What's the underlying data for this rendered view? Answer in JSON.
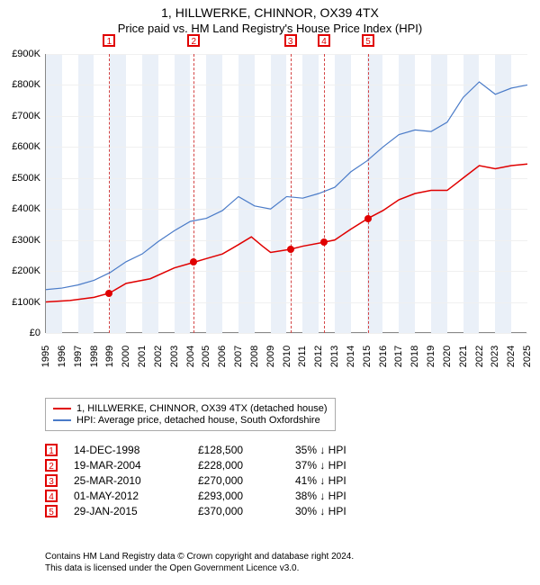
{
  "title": {
    "line1": "1, HILLWERKE, CHINNOR, OX39 4TX",
    "line2": "Price paid vs. HM Land Registry's House Price Index (HPI)"
  },
  "chart": {
    "type": "line",
    "x_range": [
      1995,
      2025
    ],
    "y_range": [
      0,
      900000
    ],
    "y_ticks": [
      0,
      100000,
      200000,
      300000,
      400000,
      500000,
      600000,
      700000,
      800000,
      900000
    ],
    "y_labels": [
      "£0",
      "£100K",
      "£200K",
      "£300K",
      "£400K",
      "£500K",
      "£600K",
      "£700K",
      "£800K",
      "£900K"
    ],
    "x_ticks": [
      1995,
      1996,
      1997,
      1998,
      1999,
      2000,
      2001,
      2002,
      2003,
      2004,
      2005,
      2006,
      2007,
      2008,
      2009,
      2010,
      2011,
      2012,
      2013,
      2014,
      2015,
      2016,
      2017,
      2018,
      2019,
      2020,
      2021,
      2022,
      2023,
      2024,
      2025
    ],
    "grid_color": "#f0f0f0",
    "band_color": "#eaf0f8",
    "dash_color": "#d44444",
    "background": "#ffffff",
    "series": {
      "property": {
        "label": "1, HILLWERKE, CHINNOR, OX39 4TX (detached house)",
        "color": "#e00000",
        "width": 1.5,
        "points": [
          [
            1995,
            100000
          ],
          [
            1996.5,
            105000
          ],
          [
            1998,
            115000
          ],
          [
            1998.95,
            128500
          ],
          [
            2000,
            160000
          ],
          [
            2001.5,
            175000
          ],
          [
            2003,
            210000
          ],
          [
            2004.21,
            228000
          ],
          [
            2005,
            240000
          ],
          [
            2006,
            255000
          ],
          [
            2007,
            285000
          ],
          [
            2007.8,
            310000
          ],
          [
            2008.5,
            280000
          ],
          [
            2009,
            260000
          ],
          [
            2010.23,
            270000
          ],
          [
            2011,
            280000
          ],
          [
            2012.33,
            293000
          ],
          [
            2013,
            300000
          ],
          [
            2014,
            335000
          ],
          [
            2015.08,
            370000
          ],
          [
            2016,
            395000
          ],
          [
            2017,
            430000
          ],
          [
            2018,
            450000
          ],
          [
            2019,
            460000
          ],
          [
            2020,
            460000
          ],
          [
            2021,
            500000
          ],
          [
            2022,
            540000
          ],
          [
            2023,
            530000
          ],
          [
            2024,
            540000
          ],
          [
            2025,
            545000
          ]
        ]
      },
      "hpi": {
        "label": "HPI: Average price, detached house, South Oxfordshire",
        "color": "#4a7bc8",
        "width": 1.2,
        "points": [
          [
            1995,
            140000
          ],
          [
            1996,
            145000
          ],
          [
            1997,
            155000
          ],
          [
            1998,
            170000
          ],
          [
            1999,
            195000
          ],
          [
            2000,
            230000
          ],
          [
            2001,
            255000
          ],
          [
            2002,
            295000
          ],
          [
            2003,
            330000
          ],
          [
            2004,
            360000
          ],
          [
            2005,
            370000
          ],
          [
            2006,
            395000
          ],
          [
            2007,
            440000
          ],
          [
            2008,
            410000
          ],
          [
            2009,
            400000
          ],
          [
            2010,
            440000
          ],
          [
            2011,
            435000
          ],
          [
            2012,
            450000
          ],
          [
            2013,
            470000
          ],
          [
            2014,
            520000
          ],
          [
            2015,
            555000
          ],
          [
            2016,
            600000
          ],
          [
            2017,
            640000
          ],
          [
            2018,
            655000
          ],
          [
            2019,
            650000
          ],
          [
            2020,
            680000
          ],
          [
            2021,
            760000
          ],
          [
            2022,
            810000
          ],
          [
            2023,
            770000
          ],
          [
            2024,
            790000
          ],
          [
            2025,
            800000
          ]
        ]
      }
    },
    "sale_markers": [
      {
        "n": "1",
        "x": 1998.95,
        "y": 128500
      },
      {
        "n": "2",
        "x": 2004.21,
        "y": 228000
      },
      {
        "n": "3",
        "x": 2010.23,
        "y": 270000
      },
      {
        "n": "4",
        "x": 2012.33,
        "y": 293000
      },
      {
        "n": "5",
        "x": 2015.08,
        "y": 370000
      }
    ],
    "alt_bands": [
      [
        1995,
        1996
      ],
      [
        1997,
        1998
      ],
      [
        1999,
        2000
      ],
      [
        2001,
        2002
      ],
      [
        2003,
        2004
      ],
      [
        2005,
        2006
      ],
      [
        2007,
        2008
      ],
      [
        2009,
        2010
      ],
      [
        2011,
        2012
      ],
      [
        2013,
        2014
      ],
      [
        2015,
        2016
      ],
      [
        2017,
        2018
      ],
      [
        2019,
        2020
      ],
      [
        2021,
        2022
      ],
      [
        2023,
        2024
      ]
    ]
  },
  "legend": {
    "items": [
      {
        "color": "#e00000",
        "label_key": "chart.series.property.label"
      },
      {
        "color": "#4a7bc8",
        "label_key": "chart.series.hpi.label"
      }
    ]
  },
  "sales_table": {
    "rows": [
      {
        "n": "1",
        "date": "14-DEC-1998",
        "price": "£128,500",
        "pct": "35% ↓ HPI"
      },
      {
        "n": "2",
        "date": "19-MAR-2004",
        "price": "£228,000",
        "pct": "37% ↓ HPI"
      },
      {
        "n": "3",
        "date": "25-MAR-2010",
        "price": "£270,000",
        "pct": "41% ↓ HPI"
      },
      {
        "n": "4",
        "date": "01-MAY-2012",
        "price": "£293,000",
        "pct": "38% ↓ HPI"
      },
      {
        "n": "5",
        "date": "29-JAN-2015",
        "price": "£370,000",
        "pct": "30% ↓ HPI"
      }
    ]
  },
  "footnote": {
    "line1": "Contains HM Land Registry data © Crown copyright and database right 2024.",
    "line2": "This data is licensed under the Open Government Licence v3.0."
  }
}
